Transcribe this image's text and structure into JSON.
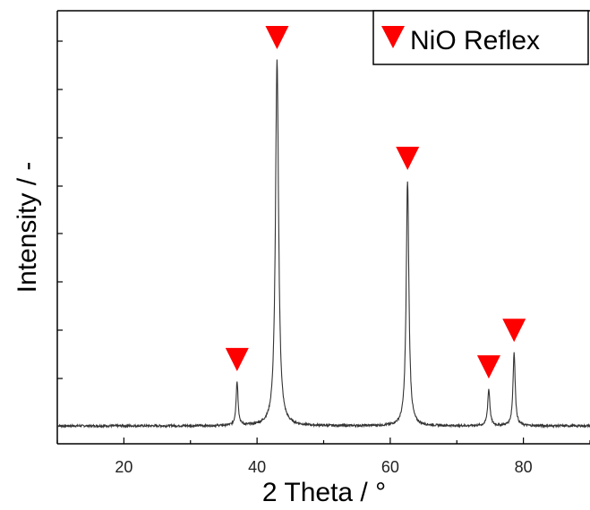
{
  "chart_data": {
    "type": "line",
    "title": "",
    "xlabel": "2 Theta / °",
    "ylabel": "Intensity / -",
    "xlim": [
      10,
      90
    ],
    "ylim": [
      0,
      1.0
    ],
    "x_ticks": [
      20,
      40,
      60,
      80
    ],
    "x_tick_labels": [
      "20",
      "40",
      "60",
      "80"
    ],
    "y_tick_labels": [],
    "grid": false,
    "legend": {
      "placement": "top-right",
      "entries": [
        {
          "label": "NiO Reflex",
          "marker": "red-down-triangle",
          "color": "#ff0000"
        }
      ]
    },
    "series": [
      {
        "color": "#333333",
        "baseline": 0.0,
        "peaks": [
          {
            "x": 37.0,
            "y": 0.12
          },
          {
            "x": 43.0,
            "y": 1.0
          },
          {
            "x": 62.6,
            "y": 0.67
          },
          {
            "x": 74.8,
            "y": 0.1
          },
          {
            "x": 78.6,
            "y": 0.2
          }
        ]
      }
    ],
    "markers": {
      "symbol": "red-down-triangle",
      "color": "#ff0000",
      "x": [
        37.0,
        43.0,
        62.6,
        74.8,
        78.6
      ]
    }
  }
}
